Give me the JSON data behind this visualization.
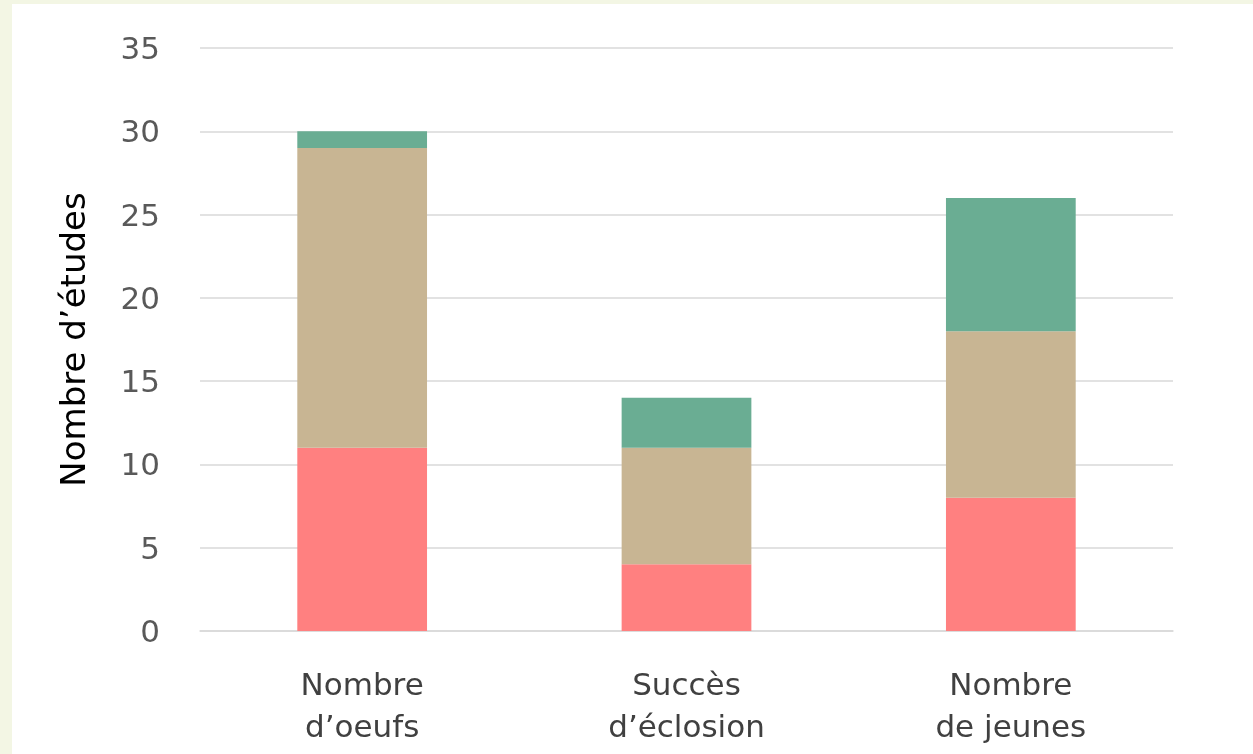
{
  "chart_data": {
    "type": "bar",
    "stacked": true,
    "ylabel": "Nombre d’études",
    "categories": [
      "Nombre\nd’oeufs",
      "Succès\nd’éclosion",
      "Nombre\nde jeunes"
    ],
    "series": [
      {
        "color": "#ff8080",
        "values": [
          11,
          4,
          8
        ]
      },
      {
        "color": "#c8b593",
        "values": [
          18,
          7,
          10
        ]
      },
      {
        "color": "#6aad93",
        "values": [
          1,
          3,
          8
        ]
      }
    ],
    "ylim": [
      0,
      35
    ],
    "yticks": [
      0,
      5,
      10,
      15,
      20,
      25,
      30,
      35
    ],
    "grid": "y"
  }
}
